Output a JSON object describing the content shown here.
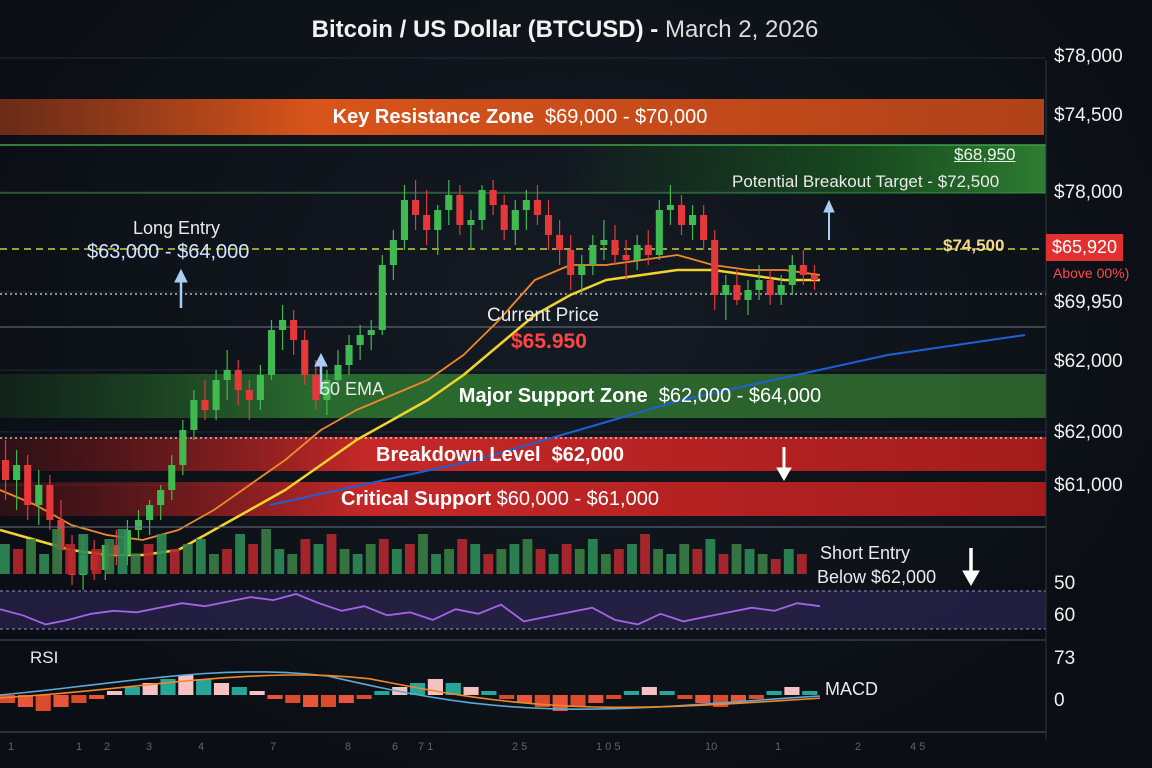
{
  "title": {
    "main": "Bitcoin / US Dollar (BTCUSD)",
    "sep": " - ",
    "date": "March 2, 2026"
  },
  "zones": {
    "resistance": {
      "label": "Key Resistance Zone",
      "range": "$69,000 - $70,000",
      "color": "#d9541a"
    },
    "support": {
      "label": "Major Support Zone",
      "range": "$62,000 - $64,000",
      "color": "#2e7d32"
    },
    "breakdown": {
      "label": "Breakdown Level",
      "range": "$62,000",
      "color": "#c62828"
    },
    "critical": {
      "label": "Critical Support",
      "range": "$60,000 - $61,000",
      "color": "#b71c1c"
    }
  },
  "annotations": {
    "breakout_value": "$68,950",
    "breakout_target": "Potential Breakout Target  - $72,500",
    "long_entry_title": "Long Entry",
    "long_entry_range": "$63,000 - $64,000",
    "current_price_label": "Current Price",
    "current_price_value": "$65.950",
    "ema_label": "50 EMA",
    "level_yellow": "$74,500",
    "price_tag": "$65,920",
    "above_note": "Above 00%)",
    "short_entry_1": "Short Entry",
    "short_entry_2": "Below $62,000",
    "rsi_label": "RSI",
    "macd_label": "MACD"
  },
  "y_axis_labels": [
    "$78,000",
    "$74,500",
    "$78,000",
    "$69,950",
    "$62,000",
    "$62,000",
    "$61,000"
  ],
  "indicator_axis_labels": [
    "50",
    "60",
    "73",
    "0"
  ],
  "x_ticks": [
    "1",
    "1",
    "2",
    "3",
    "4",
    "7",
    "8",
    "6",
    "7 1",
    "2 5",
    "1 0 5",
    "10",
    "1",
    "2",
    "4 5"
  ],
  "colors": {
    "up": "#3fb950",
    "down": "#e5383b",
    "ema_fast": "#f0882a",
    "ema_slow": "#f2d22e",
    "ema_long": "#1f5fd6",
    "rsi": "#a463e8",
    "accent_red": "#e03030"
  },
  "chart_data": {
    "type": "candlestick",
    "title": "Bitcoin / US Dollar (BTCUSD) - March 2, 2026",
    "y_unit": "USD",
    "candles": [
      [
        64.4,
        64.8,
        63.6,
        64.0
      ],
      [
        64.0,
        64.6,
        63.4,
        64.3
      ],
      [
        64.3,
        64.5,
        63.2,
        63.5
      ],
      [
        63.5,
        64.2,
        63.1,
        63.9
      ],
      [
        63.9,
        64.1,
        63.0,
        63.2
      ],
      [
        63.2,
        63.6,
        62.3,
        62.6
      ],
      [
        62.6,
        62.9,
        61.9,
        62.1
      ],
      [
        62.1,
        62.9,
        61.8,
        62.5
      ],
      [
        62.5,
        62.8,
        62.0,
        62.2
      ],
      [
        62.2,
        62.8,
        62.0,
        62.7
      ],
      [
        62.7,
        63.0,
        62.3,
        62.5
      ],
      [
        62.5,
        63.2,
        62.3,
        63.0
      ],
      [
        63.0,
        63.4,
        62.8,
        63.2
      ],
      [
        63.2,
        63.6,
        62.9,
        63.5
      ],
      [
        63.5,
        63.9,
        63.2,
        63.8
      ],
      [
        63.8,
        64.5,
        63.6,
        64.3
      ],
      [
        64.3,
        65.2,
        64.1,
        65.0
      ],
      [
        65.0,
        65.8,
        64.8,
        65.6
      ],
      [
        65.6,
        66.0,
        65.2,
        65.4
      ],
      [
        65.4,
        66.2,
        65.2,
        66.0
      ],
      [
        66.0,
        66.6,
        65.6,
        66.2
      ],
      [
        66.2,
        66.4,
        65.5,
        65.8
      ],
      [
        65.8,
        66.0,
        65.2,
        65.6
      ],
      [
        65.6,
        66.3,
        65.4,
        66.1
      ],
      [
        66.1,
        67.2,
        66.0,
        67.0
      ],
      [
        67.0,
        67.5,
        66.6,
        67.2
      ],
      [
        67.2,
        67.4,
        66.5,
        66.8
      ],
      [
        66.8,
        67.0,
        65.9,
        66.1
      ],
      [
        66.1,
        66.4,
        65.4,
        65.6
      ],
      [
        65.6,
        66.2,
        65.3,
        66.0
      ],
      [
        66.0,
        66.6,
        65.8,
        66.3
      ],
      [
        66.3,
        66.9,
        66.1,
        66.7
      ],
      [
        66.7,
        67.1,
        66.4,
        66.9
      ],
      [
        66.9,
        67.2,
        66.6,
        67.0
      ],
      [
        67.0,
        68.5,
        66.9,
        68.3
      ],
      [
        68.3,
        69.0,
        68.0,
        68.8
      ],
      [
        68.8,
        69.9,
        68.6,
        69.6
      ],
      [
        69.6,
        70.0,
        69.0,
        69.3
      ],
      [
        69.3,
        69.8,
        68.7,
        69.0
      ],
      [
        69.0,
        69.5,
        68.5,
        69.4
      ],
      [
        69.4,
        70.0,
        69.1,
        69.7
      ],
      [
        69.7,
        69.9,
        68.9,
        69.1
      ],
      [
        69.1,
        69.4,
        68.6,
        69.2
      ],
      [
        69.2,
        69.9,
        69.0,
        69.8
      ],
      [
        69.8,
        70.0,
        69.3,
        69.5
      ],
      [
        69.5,
        69.7,
        68.8,
        69.0
      ],
      [
        69.0,
        69.6,
        68.7,
        69.4
      ],
      [
        69.4,
        69.8,
        69.0,
        69.6
      ],
      [
        69.6,
        69.9,
        69.1,
        69.3
      ],
      [
        69.3,
        69.6,
        68.6,
        68.9
      ],
      [
        68.9,
        69.2,
        68.3,
        68.6
      ],
      [
        68.6,
        68.9,
        67.8,
        68.1
      ],
      [
        68.1,
        68.5,
        67.7,
        68.3
      ],
      [
        68.3,
        68.9,
        68.1,
        68.7
      ],
      [
        68.7,
        69.2,
        68.4,
        68.8
      ],
      [
        68.8,
        69.1,
        68.3,
        68.5
      ],
      [
        68.5,
        68.8,
        68.0,
        68.4
      ],
      [
        68.4,
        68.9,
        68.2,
        68.7
      ],
      [
        68.7,
        69.0,
        68.3,
        68.5
      ],
      [
        68.5,
        69.6,
        68.4,
        69.4
      ],
      [
        69.4,
        69.9,
        69.1,
        69.5
      ],
      [
        69.5,
        69.7,
        68.9,
        69.1
      ],
      [
        69.1,
        69.5,
        68.8,
        69.3
      ],
      [
        69.3,
        69.5,
        68.6,
        68.8
      ],
      [
        68.8,
        69.0,
        67.4,
        67.7
      ],
      [
        67.7,
        68.1,
        67.2,
        67.9
      ],
      [
        67.9,
        68.2,
        67.5,
        67.6
      ],
      [
        67.6,
        68.0,
        67.3,
        67.8
      ],
      [
        67.8,
        68.3,
        67.6,
        68.0
      ],
      [
        68.0,
        68.2,
        67.5,
        67.7
      ],
      [
        67.7,
        68.1,
        67.5,
        67.9
      ],
      [
        67.9,
        68.5,
        67.7,
        68.3
      ],
      [
        68.3,
        68.6,
        67.9,
        68.1
      ],
      [
        68.1,
        68.3,
        67.8,
        68.0
      ]
    ],
    "ema_50": [
      63.8,
      63.5,
      63.1,
      62.9,
      62.8,
      63.0,
      63.4,
      63.9,
      64.4,
      65.0,
      65.4,
      65.7,
      66.0,
      66.5,
      67.2,
      68.0,
      68.3,
      68.3,
      68.4,
      68.5,
      68.3,
      68.2,
      68.2,
      68.1
    ],
    "ema_slow": [
      63.0,
      62.8,
      62.6,
      62.5,
      62.5,
      62.6,
      63.0,
      63.4,
      63.8,
      64.3,
      64.8,
      65.2,
      65.6,
      66.1,
      66.7,
      67.3,
      67.7,
      68.0,
      68.1,
      68.2,
      68.2,
      68.1,
      68.0,
      68.0
    ],
    "ema_long": [
      63.5,
      63.8,
      64.1,
      64.4,
      64.8,
      65.2,
      65.6,
      65.9,
      66.2,
      66.5,
      66.7,
      66.9
    ],
    "rsi": [
      48,
      44,
      38,
      41,
      45,
      47,
      46,
      49,
      52,
      50,
      53,
      56,
      54,
      58,
      52,
      47,
      50,
      44,
      46,
      41,
      48,
      45,
      51,
      40,
      43,
      46,
      49,
      41,
      38,
      45,
      40,
      43,
      46,
      49,
      47,
      52,
      50
    ],
    "volume": [
      6,
      5,
      7,
      4,
      9,
      6,
      8,
      5,
      7,
      9,
      4,
      6,
      8,
      5,
      6,
      7,
      4,
      5,
      8,
      6,
      9,
      5,
      4,
      7,
      6,
      8,
      5,
      4,
      6,
      7,
      5,
      6,
      8,
      4,
      5,
      7,
      6,
      4,
      5,
      6,
      7,
      5,
      4,
      6,
      5,
      7,
      4,
      5,
      6,
      8,
      5,
      4,
      6,
      5,
      7,
      4,
      6,
      5,
      4,
      3,
      5,
      4
    ],
    "macd_hist": [
      -2,
      -3,
      -4,
      -3,
      -2,
      -1,
      1,
      2,
      3,
      4,
      5,
      4,
      3,
      2,
      1,
      -1,
      -2,
      -3,
      -3,
      -2,
      -1,
      1,
      2,
      3,
      4,
      3,
      2,
      1,
      -1,
      -2,
      -3,
      -4,
      -3,
      -2,
      -1,
      1,
      2,
      1,
      -1,
      -2,
      -3,
      -2,
      -1,
      1,
      2,
      1
    ]
  }
}
